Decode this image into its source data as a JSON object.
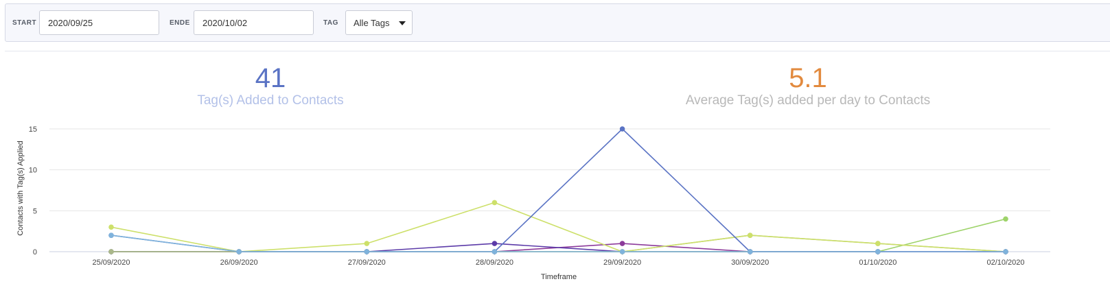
{
  "filters": {
    "start_label": "START",
    "start_value": "2020/09/25",
    "end_label": "ENDE",
    "end_value": "2020/10/02",
    "tag_label": "TAG",
    "tag_selected": "Alle Tags"
  },
  "stats": [
    {
      "value": "41",
      "label": "Tag(s) Added to Contacts",
      "value_color": "#5a73c4",
      "label_color": "#b3c1e8"
    },
    {
      "value": "5.1",
      "label": "Average Tag(s) added per day to Contacts",
      "value_color": "#e28a3e",
      "label_color": "#b8b8b8"
    }
  ],
  "chart_data": {
    "type": "line",
    "title": "",
    "xlabel": "Timeframe",
    "ylabel": "Contacts with Tag(s) Applied",
    "ylim": [
      0,
      15
    ],
    "yticks": [
      0,
      5,
      10,
      15
    ],
    "grid": true,
    "categories": [
      "25/09/2020",
      "26/09/2020",
      "27/09/2020",
      "28/09/2020",
      "29/09/2020",
      "30/09/2020",
      "01/10/2020",
      "02/10/2020"
    ],
    "series": [
      {
        "color": "#8c3a9a",
        "values": [
          0,
          0,
          0,
          0,
          1,
          0,
          0,
          0
        ]
      },
      {
        "color": "#5b3aa8",
        "values": [
          0,
          0,
          0,
          1,
          0,
          0,
          0,
          0
        ]
      },
      {
        "color": "#9ed36a",
        "values": [
          0,
          0,
          0,
          0,
          0,
          0,
          0,
          4
        ]
      },
      {
        "color": "#aab88a",
        "values": [
          0,
          0,
          0,
          0,
          0,
          2,
          1,
          0
        ]
      },
      {
        "color": "#cde06a",
        "values": [
          3,
          0,
          1,
          6,
          0,
          2,
          1,
          0
        ]
      },
      {
        "color": "#5a73c4",
        "values": [
          2,
          0,
          0,
          0,
          15,
          0,
          0,
          0
        ]
      },
      {
        "color": "#7fb3dc",
        "values": [
          2,
          0,
          0,
          0,
          0,
          0,
          0,
          0
        ]
      }
    ]
  }
}
